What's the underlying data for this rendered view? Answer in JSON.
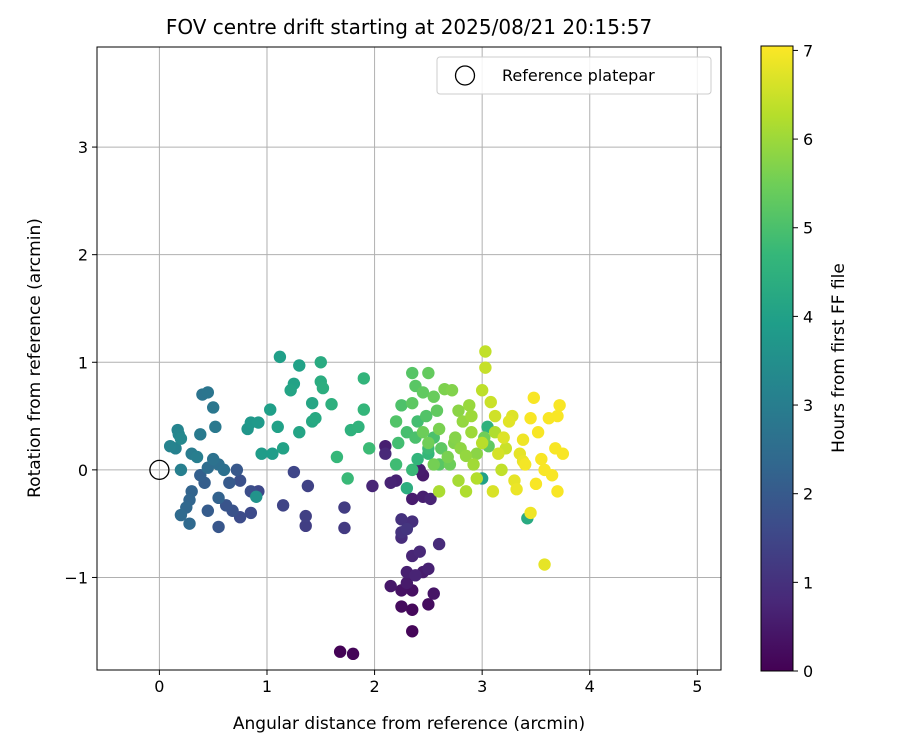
{
  "chart_data": {
    "type": "scatter",
    "title": "FOV centre drift starting at 2025/08/21 20:15:57",
    "xlabel": "Angular distance from reference (arcmin)",
    "ylabel": "Rotation from reference (arcmin)",
    "xlim": [
      -0.58,
      5.22
    ],
    "ylim": [
      -1.86,
      3.93
    ],
    "xticks": [
      0,
      1,
      2,
      3,
      4,
      5
    ],
    "yticks": [
      -1,
      0,
      1,
      2,
      3
    ],
    "xtick_labels": [
      "0",
      "1",
      "2",
      "3",
      "4",
      "5"
    ],
    "ytick_labels": [
      "−1",
      "0",
      "1",
      "2",
      "3"
    ],
    "grid": true,
    "legend": {
      "position": "top-right",
      "label": "Reference platepar"
    },
    "reference_point": {
      "x": 0,
      "y": 0
    },
    "colorbar": {
      "label": "Hours from first FF file",
      "min": 0,
      "max": 7.05,
      "ticks": [
        0,
        1,
        2,
        3,
        4,
        5,
        6,
        7
      ],
      "tick_labels": [
        "0",
        "1",
        "2",
        "3",
        "4",
        "5",
        "6",
        "7"
      ],
      "colormap": "viridis",
      "stops": [
        "#440154",
        "#482878",
        "#3e4989",
        "#31688e",
        "#26828e",
        "#1f9e89",
        "#35b779",
        "#6ece58",
        "#b5de2b",
        "#fde725"
      ]
    },
    "points": [
      {
        "x": 1.68,
        "y": -1.69,
        "t": 0.05
      },
      {
        "x": 1.8,
        "y": -1.71,
        "t": 0.08
      },
      {
        "x": 2.35,
        "y": -1.5,
        "t": 0.1
      },
      {
        "x": 2.35,
        "y": -1.3,
        "t": 0.15
      },
      {
        "x": 2.25,
        "y": -1.27,
        "t": 0.2
      },
      {
        "x": 2.5,
        "y": -1.25,
        "t": 0.25
      },
      {
        "x": 2.35,
        "y": -1.12,
        "t": 0.3
      },
      {
        "x": 2.25,
        "y": -1.12,
        "t": 0.35
      },
      {
        "x": 2.55,
        "y": -1.15,
        "t": 0.4
      },
      {
        "x": 2.15,
        "y": -1.08,
        "t": 0.45
      },
      {
        "x": 2.3,
        "y": -1.05,
        "t": 0.5
      },
      {
        "x": 2.45,
        "y": -0.95,
        "t": 0.55
      },
      {
        "x": 2.3,
        "y": -0.95,
        "t": 0.6
      },
      {
        "x": 2.5,
        "y": -0.92,
        "t": 0.65
      },
      {
        "x": 2.38,
        "y": -0.98,
        "t": 0.7
      },
      {
        "x": 2.35,
        "y": -0.8,
        "t": 0.75
      },
      {
        "x": 2.42,
        "y": -0.76,
        "t": 0.8
      },
      {
        "x": 2.6,
        "y": -0.69,
        "t": 0.85
      },
      {
        "x": 2.25,
        "y": -0.63,
        "t": 0.9
      },
      {
        "x": 2.35,
        "y": -0.48,
        "t": 0.95
      },
      {
        "x": 2.25,
        "y": -0.46,
        "t": 1.0
      },
      {
        "x": 2.35,
        "y": -0.27,
        "t": 0.55
      },
      {
        "x": 2.45,
        "y": -0.25,
        "t": 0.6
      },
      {
        "x": 2.52,
        "y": -0.27,
        "t": 0.7
      },
      {
        "x": 2.45,
        "y": -0.05,
        "t": 0.5
      },
      {
        "x": 2.42,
        "y": 0.0,
        "t": 0.55
      },
      {
        "x": 2.2,
        "y": -0.1,
        "t": 0.65
      },
      {
        "x": 2.1,
        "y": 0.22,
        "t": 0.6
      },
      {
        "x": 2.15,
        "y": -0.12,
        "t": 0.7
      },
      {
        "x": 1.98,
        "y": -0.15,
        "t": 0.75
      },
      {
        "x": 2.3,
        "y": -0.55,
        "t": 1.1
      },
      {
        "x": 2.25,
        "y": -0.58,
        "t": 1.05
      },
      {
        "x": 1.72,
        "y": -0.54,
        "t": 1.2
      },
      {
        "x": 1.72,
        "y": -0.35,
        "t": 1.25
      },
      {
        "x": 1.36,
        "y": -0.52,
        "t": 1.3
      },
      {
        "x": 1.36,
        "y": -0.43,
        "t": 1.35
      },
      {
        "x": 1.38,
        "y": -0.15,
        "t": 1.4
      },
      {
        "x": 1.15,
        "y": -0.33,
        "t": 1.45
      },
      {
        "x": 1.25,
        "y": -0.02,
        "t": 1.5
      },
      {
        "x": 0.92,
        "y": -0.2,
        "t": 1.55
      },
      {
        "x": 0.85,
        "y": -0.4,
        "t": 1.6
      },
      {
        "x": 0.75,
        "y": -0.44,
        "t": 1.65
      },
      {
        "x": 0.85,
        "y": -0.2,
        "t": 1.7
      },
      {
        "x": 0.75,
        "y": -0.1,
        "t": 1.75
      },
      {
        "x": 0.68,
        "y": -0.38,
        "t": 1.8
      },
      {
        "x": 0.62,
        "y": -0.33,
        "t": 1.85
      },
      {
        "x": 0.55,
        "y": -0.53,
        "t": 1.9
      },
      {
        "x": 0.72,
        "y": 0.0,
        "t": 1.95
      },
      {
        "x": 0.65,
        "y": -0.12,
        "t": 2.0
      },
      {
        "x": 0.45,
        "y": -0.38,
        "t": 2.05
      },
      {
        "x": 0.42,
        "y": -0.12,
        "t": 2.1
      },
      {
        "x": 0.38,
        "y": -0.05,
        "t": 2.15
      },
      {
        "x": 0.55,
        "y": -0.26,
        "t": 2.2
      },
      {
        "x": 0.3,
        "y": -0.2,
        "t": 2.25
      },
      {
        "x": 0.28,
        "y": -0.28,
        "t": 2.3
      },
      {
        "x": 0.25,
        "y": -0.35,
        "t": 2.35
      },
      {
        "x": 0.28,
        "y": -0.5,
        "t": 2.4
      },
      {
        "x": 0.2,
        "y": -0.42,
        "t": 2.45
      },
      {
        "x": 0.45,
        "y": 0.02,
        "t": 2.5
      },
      {
        "x": 0.55,
        "y": 0.05,
        "t": 2.55
      },
      {
        "x": 0.6,
        "y": 0.0,
        "t": 2.6
      },
      {
        "x": 0.5,
        "y": 0.1,
        "t": 2.65
      },
      {
        "x": 0.4,
        "y": 0.7,
        "t": 2.7
      },
      {
        "x": 0.45,
        "y": 0.72,
        "t": 2.75
      },
      {
        "x": 0.5,
        "y": 0.58,
        "t": 2.8
      },
      {
        "x": 0.52,
        "y": 0.4,
        "t": 2.85
      },
      {
        "x": 0.38,
        "y": 0.33,
        "t": 2.9
      },
      {
        "x": 0.3,
        "y": 0.15,
        "t": 2.95
      },
      {
        "x": 0.35,
        "y": 0.12,
        "t": 3.0
      },
      {
        "x": 0.2,
        "y": 0.0,
        "t": 3.05
      },
      {
        "x": 0.15,
        "y": 0.2,
        "t": 3.1
      },
      {
        "x": 0.1,
        "y": 0.22,
        "t": 3.15
      },
      {
        "x": 0.17,
        "y": 0.37,
        "t": 3.2
      },
      {
        "x": 0.18,
        "y": 0.33,
        "t": 3.25
      },
      {
        "x": 0.2,
        "y": 0.29,
        "t": 3.3
      },
      {
        "x": 0.9,
        "y": -0.25,
        "t": 3.6
      },
      {
        "x": 0.82,
        "y": 0.38,
        "t": 3.7
      },
      {
        "x": 0.85,
        "y": 0.44,
        "t": 3.75
      },
      {
        "x": 0.92,
        "y": 0.44,
        "t": 3.8
      },
      {
        "x": 0.95,
        "y": 0.15,
        "t": 3.85
      },
      {
        "x": 1.05,
        "y": 0.15,
        "t": 3.9
      },
      {
        "x": 1.03,
        "y": 0.56,
        "t": 3.95
      },
      {
        "x": 1.1,
        "y": 0.4,
        "t": 4.0
      },
      {
        "x": 1.15,
        "y": 0.2,
        "t": 4.05
      },
      {
        "x": 1.3,
        "y": 0.35,
        "t": 4.1
      },
      {
        "x": 1.12,
        "y": 1.05,
        "t": 3.95
      },
      {
        "x": 1.3,
        "y": 0.97,
        "t": 4.0
      },
      {
        "x": 1.25,
        "y": 0.8,
        "t": 4.05
      },
      {
        "x": 1.22,
        "y": 0.74,
        "t": 4.1
      },
      {
        "x": 1.42,
        "y": 0.62,
        "t": 4.15
      },
      {
        "x": 1.42,
        "y": 0.45,
        "t": 4.2
      },
      {
        "x": 1.45,
        "y": 0.48,
        "t": 4.25
      },
      {
        "x": 1.5,
        "y": 1.0,
        "t": 4.3
      },
      {
        "x": 1.5,
        "y": 0.82,
        "t": 4.35
      },
      {
        "x": 1.52,
        "y": 0.76,
        "t": 4.4
      },
      {
        "x": 1.6,
        "y": 0.61,
        "t": 4.45
      },
      {
        "x": 1.78,
        "y": 0.37,
        "t": 4.5
      },
      {
        "x": 1.85,
        "y": 0.4,
        "t": 4.55
      },
      {
        "x": 1.9,
        "y": 0.85,
        "t": 4.6
      },
      {
        "x": 1.9,
        "y": 0.56,
        "t": 4.65
      },
      {
        "x": 1.65,
        "y": 0.12,
        "t": 4.7
      },
      {
        "x": 1.75,
        "y": -0.08,
        "t": 4.75
      },
      {
        "x": 1.95,
        "y": 0.2,
        "t": 4.8
      },
      {
        "x": 2.2,
        "y": 0.05,
        "t": 4.85
      },
      {
        "x": 2.22,
        "y": 0.25,
        "t": 4.9
      },
      {
        "x": 2.3,
        "y": 0.35,
        "t": 4.95
      },
      {
        "x": 2.38,
        "y": 0.3,
        "t": 5.0
      },
      {
        "x": 2.25,
        "y": 0.6,
        "t": 5.05
      },
      {
        "x": 2.2,
        "y": 0.45,
        "t": 5.1
      },
      {
        "x": 2.35,
        "y": 0.9,
        "t": 5.15
      },
      {
        "x": 2.38,
        "y": 0.78,
        "t": 5.2
      },
      {
        "x": 2.35,
        "y": 0.62,
        "t": 5.25
      },
      {
        "x": 2.45,
        "y": 0.72,
        "t": 5.3
      },
      {
        "x": 2.5,
        "y": 0.9,
        "t": 5.35
      },
      {
        "x": 2.55,
        "y": 0.68,
        "t": 5.4
      },
      {
        "x": 2.45,
        "y": 0.35,
        "t": 5.45
      },
      {
        "x": 2.5,
        "y": 0.25,
        "t": 5.5
      },
      {
        "x": 2.55,
        "y": 0.05,
        "t": 5.55
      },
      {
        "x": 2.6,
        "y": 0.38,
        "t": 5.6
      },
      {
        "x": 2.65,
        "y": 0.75,
        "t": 5.65
      },
      {
        "x": 2.72,
        "y": 0.74,
        "t": 5.7
      },
      {
        "x": 2.75,
        "y": 0.3,
        "t": 5.75
      },
      {
        "x": 2.78,
        "y": 0.55,
        "t": 5.8
      },
      {
        "x": 2.8,
        "y": 0.2,
        "t": 5.85
      },
      {
        "x": 2.85,
        "y": 0.13,
        "t": 5.9
      },
      {
        "x": 2.88,
        "y": 0.6,
        "t": 5.95
      },
      {
        "x": 2.9,
        "y": 0.35,
        "t": 6.0
      },
      {
        "x": 2.92,
        "y": 0.05,
        "t": 6.05
      },
      {
        "x": 2.78,
        "y": -0.1,
        "t": 6.1
      },
      {
        "x": 2.6,
        "y": -0.2,
        "t": 6.15
      },
      {
        "x": 2.85,
        "y": -0.2,
        "t": 6.2
      },
      {
        "x": 2.95,
        "y": -0.08,
        "t": 6.25
      },
      {
        "x": 3.0,
        "y": 0.25,
        "t": 6.3
      },
      {
        "x": 3.0,
        "y": 0.74,
        "t": 6.35
      },
      {
        "x": 3.03,
        "y": 1.1,
        "t": 6.4
      },
      {
        "x": 3.03,
        "y": 0.95,
        "t": 6.45
      },
      {
        "x": 3.08,
        "y": 0.63,
        "t": 6.5
      },
      {
        "x": 3.12,
        "y": 0.5,
        "t": 6.55
      },
      {
        "x": 3.15,
        "y": 0.15,
        "t": 6.6
      },
      {
        "x": 3.1,
        "y": -0.2,
        "t": 6.65
      },
      {
        "x": 3.2,
        "y": 0.3,
        "t": 6.7
      },
      {
        "x": 3.25,
        "y": 0.45,
        "t": 6.75
      },
      {
        "x": 3.3,
        "y": -0.1,
        "t": 6.8
      },
      {
        "x": 3.32,
        "y": -0.18,
        "t": 6.85
      },
      {
        "x": 3.38,
        "y": 0.28,
        "t": 6.9
      },
      {
        "x": 3.4,
        "y": 0.05,
        "t": 6.95
      },
      {
        "x": 3.45,
        "y": 0.48,
        "t": 7.0
      },
      {
        "x": 3.48,
        "y": 0.67,
        "t": 7.0
      },
      {
        "x": 3.5,
        "y": -0.13,
        "t": 7.0
      },
      {
        "x": 3.52,
        "y": 0.35,
        "t": 7.0
      },
      {
        "x": 3.55,
        "y": 0.1,
        "t": 7.0
      },
      {
        "x": 3.58,
        "y": 0.0,
        "t": 7.0
      },
      {
        "x": 3.62,
        "y": 0.48,
        "t": 7.0
      },
      {
        "x": 3.65,
        "y": -0.05,
        "t": 7.0
      },
      {
        "x": 3.68,
        "y": 0.2,
        "t": 7.0
      },
      {
        "x": 3.7,
        "y": 0.5,
        "t": 7.0
      },
      {
        "x": 3.72,
        "y": 0.6,
        "t": 7.0
      },
      {
        "x": 3.75,
        "y": 0.15,
        "t": 7.0
      },
      {
        "x": 3.7,
        "y": -0.2,
        "t": 7.0
      },
      {
        "x": 3.45,
        "y": -0.4,
        "t": 6.9
      },
      {
        "x": 3.42,
        "y": -0.45,
        "t": 4.3
      },
      {
        "x": 3.58,
        "y": -0.88,
        "t": 6.8
      },
      {
        "x": 3.0,
        "y": -0.08,
        "t": 4.0
      },
      {
        "x": 3.05,
        "y": 0.4,
        "t": 4.5
      },
      {
        "x": 2.3,
        "y": -0.17,
        "t": 4.4
      },
      {
        "x": 2.4,
        "y": 0.1,
        "t": 4.6
      },
      {
        "x": 2.5,
        "y": 0.15,
        "t": 4.7
      },
      {
        "x": 2.6,
        "y": 0.05,
        "t": 5.2
      },
      {
        "x": 2.68,
        "y": 0.12,
        "t": 5.6
      },
      {
        "x": 2.74,
        "y": 0.25,
        "t": 5.7
      },
      {
        "x": 2.82,
        "y": 0.45,
        "t": 5.9
      },
      {
        "x": 2.9,
        "y": 0.5,
        "t": 6.0
      },
      {
        "x": 2.95,
        "y": 0.15,
        "t": 5.8
      },
      {
        "x": 3.02,
        "y": 0.3,
        "t": 5.5
      },
      {
        "x": 3.06,
        "y": 0.22,
        "t": 5.3
      },
      {
        "x": 3.12,
        "y": 0.35,
        "t": 6.2
      },
      {
        "x": 3.18,
        "y": 0.0,
        "t": 6.4
      },
      {
        "x": 3.22,
        "y": 0.2,
        "t": 6.5
      },
      {
        "x": 3.28,
        "y": 0.5,
        "t": 6.7
      },
      {
        "x": 3.35,
        "y": 0.15,
        "t": 6.8
      },
      {
        "x": 3.38,
        "y": 0.08,
        "t": 6.85
      },
      {
        "x": 2.58,
        "y": 0.55,
        "t": 5.3
      },
      {
        "x": 2.48,
        "y": 0.5,
        "t": 5.1
      },
      {
        "x": 2.4,
        "y": 0.45,
        "t": 4.9
      },
      {
        "x": 2.55,
        "y": 0.3,
        "t": 5.0
      },
      {
        "x": 2.62,
        "y": 0.2,
        "t": 5.25
      },
      {
        "x": 2.7,
        "y": 0.05,
        "t": 5.45
      },
      {
        "x": 2.1,
        "y": 0.15,
        "t": 0.8
      },
      {
        "x": 2.5,
        "y": 0.2,
        "t": 4.8
      },
      {
        "x": 2.35,
        "y": 0.0,
        "t": 4.75
      }
    ]
  }
}
